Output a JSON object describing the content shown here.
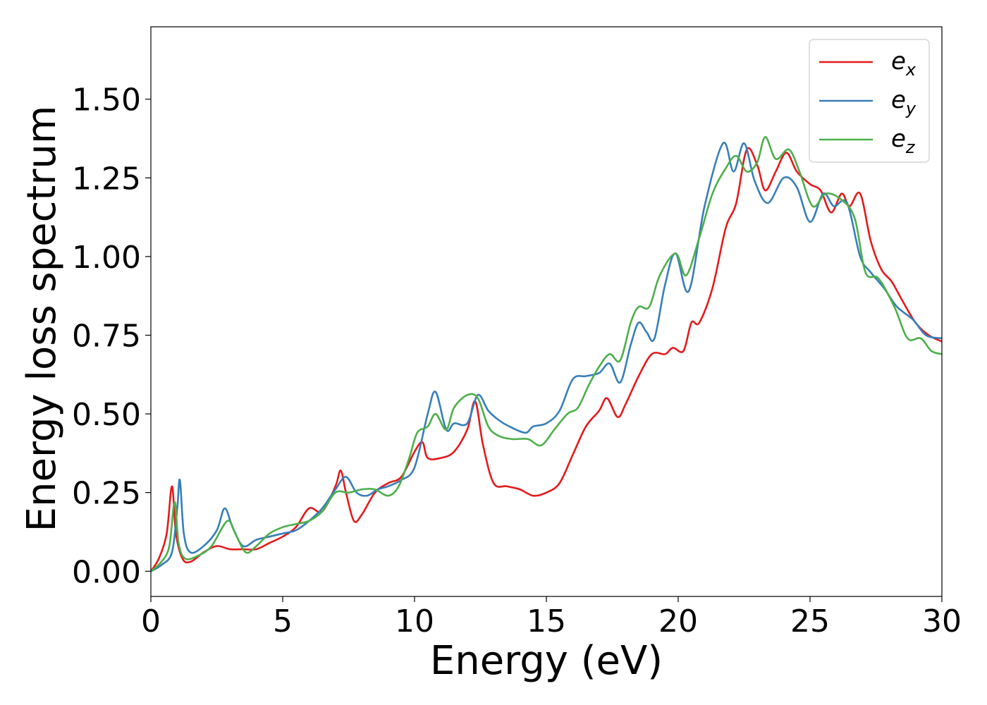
{
  "chart_data": {
    "type": "line",
    "xlabel": "Energy (eV)",
    "ylabel": "Energy loss spectrum",
    "xlim": [
      0,
      30
    ],
    "ylim": [
      -0.08,
      1.73
    ],
    "xticks": [
      "0",
      "5",
      "10",
      "15",
      "20",
      "25",
      "30"
    ],
    "yticks": [
      "0.00",
      "0.25",
      "0.50",
      "0.75",
      "1.00",
      "1.25",
      "1.50"
    ],
    "grid": false,
    "legend_position": "top-right",
    "series": [
      {
        "name": "e",
        "subscript": "x",
        "color": "#e41a1c",
        "points": [
          [
            0,
            0
          ],
          [
            0.3,
            0.04
          ],
          [
            0.6,
            0.12
          ],
          [
            0.8,
            0.27
          ],
          [
            0.95,
            0.12
          ],
          [
            1.2,
            0.04
          ],
          [
            1.5,
            0.03
          ],
          [
            2,
            0.06
          ],
          [
            2.5,
            0.08
          ],
          [
            3,
            0.07
          ],
          [
            3.5,
            0.07
          ],
          [
            4,
            0.07
          ],
          [
            4.5,
            0.09
          ],
          [
            5,
            0.11
          ],
          [
            5.5,
            0.14
          ],
          [
            6,
            0.2
          ],
          [
            6.5,
            0.19
          ],
          [
            7,
            0.27
          ],
          [
            7.2,
            0.32
          ],
          [
            7.4,
            0.25
          ],
          [
            7.7,
            0.16
          ],
          [
            8,
            0.18
          ],
          [
            8.5,
            0.25
          ],
          [
            9,
            0.28
          ],
          [
            9.5,
            0.3
          ],
          [
            10,
            0.38
          ],
          [
            10.3,
            0.41
          ],
          [
            10.5,
            0.36
          ],
          [
            11,
            0.36
          ],
          [
            11.5,
            0.38
          ],
          [
            12,
            0.45
          ],
          [
            12.3,
            0.54
          ],
          [
            12.6,
            0.4
          ],
          [
            13,
            0.28
          ],
          [
            13.5,
            0.27
          ],
          [
            14,
            0.26
          ],
          [
            14.5,
            0.24
          ],
          [
            15,
            0.25
          ],
          [
            15.5,
            0.28
          ],
          [
            16,
            0.37
          ],
          [
            16.5,
            0.46
          ],
          [
            17,
            0.51
          ],
          [
            17.3,
            0.55
          ],
          [
            17.7,
            0.49
          ],
          [
            18,
            0.53
          ],
          [
            18.5,
            0.62
          ],
          [
            19,
            0.69
          ],
          [
            19.5,
            0.69
          ],
          [
            19.8,
            0.71
          ],
          [
            20.2,
            0.7
          ],
          [
            20.5,
            0.79
          ],
          [
            20.8,
            0.79
          ],
          [
            21.3,
            0.9
          ],
          [
            21.8,
            1.09
          ],
          [
            22.2,
            1.17
          ],
          [
            22.6,
            1.34
          ],
          [
            23,
            1.29
          ],
          [
            23.3,
            1.21
          ],
          [
            23.7,
            1.27
          ],
          [
            24.1,
            1.33
          ],
          [
            24.5,
            1.27
          ],
          [
            25,
            1.23
          ],
          [
            25.4,
            1.21
          ],
          [
            25.8,
            1.14
          ],
          [
            26.2,
            1.2
          ],
          [
            26.5,
            1.16
          ],
          [
            26.9,
            1.2
          ],
          [
            27.3,
            1.05
          ],
          [
            27.7,
            0.96
          ],
          [
            28.1,
            0.92
          ],
          [
            28.5,
            0.86
          ],
          [
            29,
            0.79
          ],
          [
            29.5,
            0.75
          ],
          [
            30,
            0.73
          ]
        ]
      },
      {
        "name": "e",
        "subscript": "y",
        "color": "#377eb8",
        "points": [
          [
            0,
            0
          ],
          [
            0.4,
            0.02
          ],
          [
            0.8,
            0.06
          ],
          [
            1.0,
            0.2
          ],
          [
            1.1,
            0.29
          ],
          [
            1.25,
            0.12
          ],
          [
            1.5,
            0.06
          ],
          [
            2,
            0.08
          ],
          [
            2.5,
            0.13
          ],
          [
            2.8,
            0.2
          ],
          [
            3.1,
            0.14
          ],
          [
            3.5,
            0.08
          ],
          [
            4,
            0.1
          ],
          [
            4.5,
            0.11
          ],
          [
            5,
            0.12
          ],
          [
            5.5,
            0.13
          ],
          [
            6,
            0.16
          ],
          [
            6.5,
            0.2
          ],
          [
            7,
            0.26
          ],
          [
            7.4,
            0.3
          ],
          [
            7.8,
            0.25
          ],
          [
            8.2,
            0.24
          ],
          [
            8.6,
            0.26
          ],
          [
            9,
            0.27
          ],
          [
            9.5,
            0.29
          ],
          [
            10,
            0.33
          ],
          [
            10.5,
            0.5
          ],
          [
            10.8,
            0.57
          ],
          [
            11.2,
            0.45
          ],
          [
            11.5,
            0.47
          ],
          [
            12,
            0.47
          ],
          [
            12.4,
            0.56
          ],
          [
            12.8,
            0.51
          ],
          [
            13.2,
            0.48
          ],
          [
            13.6,
            0.46
          ],
          [
            14.2,
            0.44
          ],
          [
            14.5,
            0.46
          ],
          [
            15,
            0.47
          ],
          [
            15.5,
            0.51
          ],
          [
            16,
            0.61
          ],
          [
            16.5,
            0.62
          ],
          [
            17,
            0.63
          ],
          [
            17.4,
            0.66
          ],
          [
            17.8,
            0.6
          ],
          [
            18.2,
            0.72
          ],
          [
            18.5,
            0.79
          ],
          [
            18.8,
            0.76
          ],
          [
            19.1,
            0.74
          ],
          [
            19.5,
            0.91
          ],
          [
            19.9,
            1.01
          ],
          [
            20.4,
            0.89
          ],
          [
            21,
            1.16
          ],
          [
            21.7,
            1.36
          ],
          [
            22.1,
            1.27
          ],
          [
            22.5,
            1.36
          ],
          [
            22.9,
            1.24
          ],
          [
            23.4,
            1.17
          ],
          [
            24,
            1.25
          ],
          [
            24.5,
            1.22
          ],
          [
            25,
            1.11
          ],
          [
            25.5,
            1.2
          ],
          [
            25.9,
            1.16
          ],
          [
            26.4,
            1.17
          ],
          [
            26.9,
            1.0
          ],
          [
            27.3,
            0.95
          ],
          [
            27.8,
            0.9
          ],
          [
            28.3,
            0.84
          ],
          [
            28.9,
            0.8
          ],
          [
            29.4,
            0.75
          ],
          [
            30,
            0.74
          ]
        ]
      },
      {
        "name": "e",
        "subscript": "z",
        "color": "#4daf4a",
        "points": [
          [
            0,
            0
          ],
          [
            0.4,
            0.03
          ],
          [
            0.7,
            0.08
          ],
          [
            0.9,
            0.22
          ],
          [
            1.05,
            0.09
          ],
          [
            1.3,
            0.04
          ],
          [
            1.8,
            0.05
          ],
          [
            2.3,
            0.08
          ],
          [
            2.9,
            0.16
          ],
          [
            3.2,
            0.12
          ],
          [
            3.6,
            0.06
          ],
          [
            4,
            0.08
          ],
          [
            4.5,
            0.12
          ],
          [
            5,
            0.14
          ],
          [
            5.5,
            0.15
          ],
          [
            6,
            0.16
          ],
          [
            6.5,
            0.19
          ],
          [
            7,
            0.25
          ],
          [
            7.5,
            0.25
          ],
          [
            8,
            0.26
          ],
          [
            8.5,
            0.26
          ],
          [
            9,
            0.24
          ],
          [
            9.4,
            0.27
          ],
          [
            9.8,
            0.36
          ],
          [
            10.1,
            0.44
          ],
          [
            10.5,
            0.46
          ],
          [
            10.8,
            0.5
          ],
          [
            11.2,
            0.45
          ],
          [
            11.5,
            0.52
          ],
          [
            12,
            0.56
          ],
          [
            12.4,
            0.55
          ],
          [
            12.8,
            0.46
          ],
          [
            13.2,
            0.43
          ],
          [
            13.7,
            0.42
          ],
          [
            14.3,
            0.42
          ],
          [
            14.8,
            0.4
          ],
          [
            15.3,
            0.45
          ],
          [
            15.8,
            0.5
          ],
          [
            16.2,
            0.52
          ],
          [
            16.6,
            0.59
          ],
          [
            17,
            0.65
          ],
          [
            17.4,
            0.69
          ],
          [
            17.8,
            0.67
          ],
          [
            18.2,
            0.79
          ],
          [
            18.5,
            0.84
          ],
          [
            18.9,
            0.84
          ],
          [
            19.3,
            0.94
          ],
          [
            19.9,
            1.01
          ],
          [
            20.3,
            0.94
          ],
          [
            20.8,
            1.06
          ],
          [
            21.3,
            1.2
          ],
          [
            21.8,
            1.28
          ],
          [
            22.2,
            1.32
          ],
          [
            22.6,
            1.27
          ],
          [
            23,
            1.3
          ],
          [
            23.3,
            1.38
          ],
          [
            23.7,
            1.31
          ],
          [
            24.2,
            1.34
          ],
          [
            24.6,
            1.27
          ],
          [
            25.1,
            1.16
          ],
          [
            25.6,
            1.2
          ],
          [
            26.2,
            1.18
          ],
          [
            26.7,
            1.12
          ],
          [
            27.1,
            0.95
          ],
          [
            27.6,
            0.93
          ],
          [
            28.2,
            0.84
          ],
          [
            28.7,
            0.74
          ],
          [
            29.2,
            0.74
          ],
          [
            29.6,
            0.7
          ],
          [
            30,
            0.69
          ]
        ]
      }
    ]
  }
}
